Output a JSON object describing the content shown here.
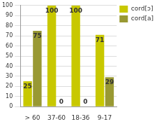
{
  "chart_data": {
    "type": "bar",
    "categories": [
      "> 60",
      "37-60",
      "18-36",
      "9-17"
    ],
    "series": [
      {
        "name": "cord[ɔ]",
        "color": "#c8c800",
        "values": [
          25,
          100,
          100,
          71
        ]
      },
      {
        "name": "cord[a]",
        "color": "#999933",
        "values": [
          75,
          0,
          0,
          29
        ]
      }
    ],
    "ylim": [
      0,
      100
    ],
    "yticks": [
      0,
      10,
      20,
      30,
      40,
      50,
      60,
      70,
      80,
      90,
      100
    ],
    "grid": true,
    "legend": "right",
    "data_labels": true
  }
}
